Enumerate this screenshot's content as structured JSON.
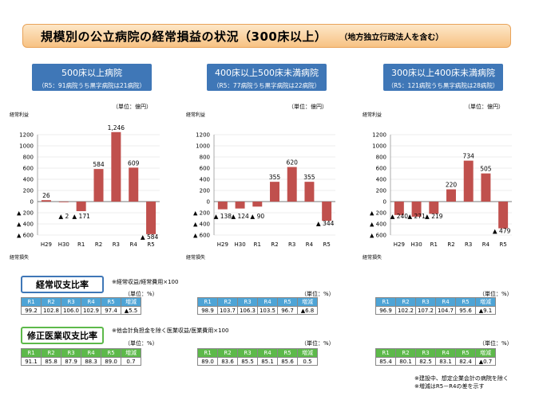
{
  "title": {
    "main": "規模別の公立病院の経常損益の状況（300床以上）",
    "sub": "（地方独立行政法人を含む）"
  },
  "chart_data": [
    {
      "type": "bar",
      "title": "500床以上病院",
      "subtitle": "（R5：91病院うち黒字病院は21病院）",
      "unit": "（単位：億円）",
      "ylabel": "経常利益",
      "ylabel_bottom": "経常損失",
      "categories": [
        "H29",
        "H30",
        "R1",
        "R2",
        "R3",
        "R4",
        "R5"
      ],
      "values": [
        26,
        -2,
        -171,
        584,
        1246,
        609,
        -584
      ],
      "labels": [
        "26",
        "▲ 2",
        "▲ 171",
        "584",
        "1,246",
        "609",
        "▲ 584"
      ],
      "ylim": [
        -600,
        1400
      ],
      "yticks": [
        -600,
        -400,
        -200,
        0,
        200,
        400,
        600,
        800,
        1000,
        1200
      ],
      "yticklabels": [
        "▲ 600",
        "▲ 400",
        "▲ 200",
        "0",
        "200",
        "400",
        "600",
        "800",
        "1000",
        "1200"
      ],
      "color": "#c0504d"
    },
    {
      "type": "bar",
      "title": "400床以上500床未満病院",
      "subtitle": "（R5：77病院うち黒字病院は22病院）",
      "unit": "（単位：億円）",
      "ylabel": "経常利益",
      "ylabel_bottom": "経常損失",
      "categories": [
        "H29",
        "H30",
        "R1",
        "R2",
        "R3",
        "R4",
        "R5"
      ],
      "values": [
        -138,
        -124,
        -90,
        355,
        620,
        355,
        -344
      ],
      "labels": [
        "▲ 138",
        "▲ 124",
        "▲ 90",
        "355",
        "620",
        "355",
        "▲ 344"
      ],
      "ylim": [
        -600,
        1400
      ],
      "yticks": [
        -600,
        -400,
        -200,
        0,
        200,
        400,
        600,
        800,
        1000,
        1200
      ],
      "yticklabels": [
        "▲ 600",
        "▲ 400",
        "▲ 200",
        "0",
        "200",
        "400",
        "600",
        "800",
        "1000",
        "1200"
      ],
      "color": "#c0504d"
    },
    {
      "type": "bar",
      "title": "300床以上400床未満病院",
      "subtitle": "（R5：121病院うち黒字病院は28病院）",
      "unit": "（単位：億円）",
      "ylabel": "経常利益",
      "ylabel_bottom": "経常損失",
      "categories": [
        "H29",
        "H30",
        "R1",
        "R2",
        "R3",
        "R4",
        "R5"
      ],
      "values": [
        -240,
        -271,
        -219,
        220,
        734,
        505,
        -479
      ],
      "labels": [
        "▲ 240",
        "▲ 271",
        "▲ 219",
        "220",
        "734",
        "505",
        "▲ 479"
      ],
      "ylim": [
        -600,
        1400
      ],
      "yticks": [
        -600,
        -400,
        -200,
        0,
        200,
        400,
        600,
        800,
        1000,
        1200
      ],
      "yticklabels": [
        "▲ 600",
        "▲ 400",
        "▲ 200",
        "0",
        "200",
        "400",
        "600",
        "800",
        "1000",
        "1200"
      ],
      "color": "#c0504d"
    },
    {
      "type": "table",
      "title": "経常収支比率",
      "note": "※経常収益/経常費用×100",
      "unit": "（単位：%）",
      "columns": [
        "R1",
        "R2",
        "R3",
        "R4",
        "R5",
        "増減"
      ],
      "rows": [
        [
          "99.2",
          "102.8",
          "106.0",
          "102.9",
          "97.4",
          "▲5.5"
        ],
        [
          "98.9",
          "103.7",
          "106.3",
          "103.5",
          "96.7",
          "▲6.8"
        ],
        [
          "96.9",
          "102.2",
          "107.2",
          "104.7",
          "95.6",
          "▲9.1"
        ]
      ]
    },
    {
      "type": "table",
      "title": "修正医業収支比率",
      "note": "※他会計負担金を除く医業収益/医業費用×100",
      "unit": "（単位：%）",
      "columns": [
        "R1",
        "R2",
        "R3",
        "R4",
        "R5",
        "増減"
      ],
      "rows": [
        [
          "91.1",
          "85.8",
          "87.9",
          "88.3",
          "89.0",
          "0.7"
        ],
        [
          "89.0",
          "83.6",
          "85.5",
          "85.1",
          "85.6",
          "0.5"
        ],
        [
          "85.4",
          "80.1",
          "82.5",
          "83.1",
          "82.4",
          "▲0.7"
        ]
      ]
    }
  ],
  "footnotes": [
    "※建設中、想定企業会計の病院を除く",
    "※増減はR5－R4の差を示す"
  ],
  "colors": {
    "bar": "#c0504d",
    "header_blue": "#3f77b7",
    "table_blue": "#4ea4d6",
    "table_green": "#5db94a",
    "title_border": "#e8a35a"
  }
}
